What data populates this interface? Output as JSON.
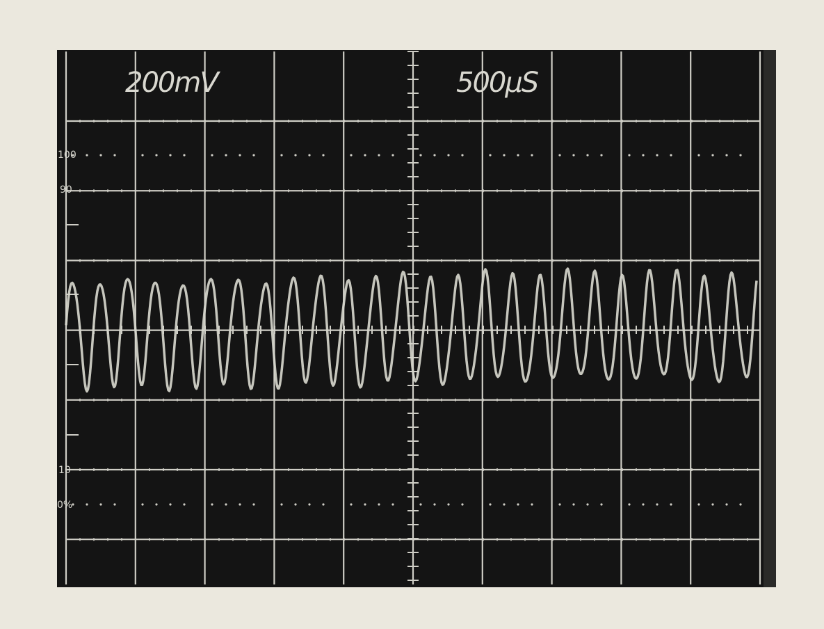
{
  "readout": {
    "volts_per_div": "200mV",
    "time_per_div": "500µS"
  },
  "scale_marks": [
    "100",
    "90",
    "10",
    "0%"
  ]
}
